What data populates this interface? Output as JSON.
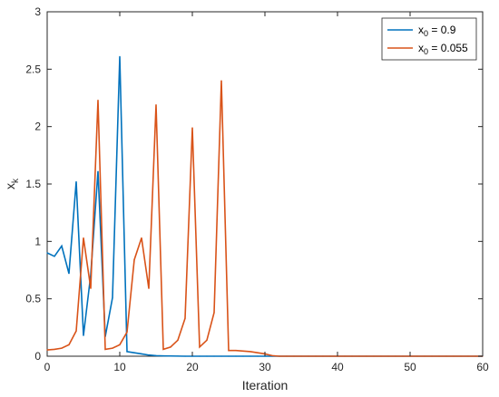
{
  "chart_data": {
    "type": "line",
    "xlabel": "Iteration",
    "ylabel": "x",
    "ylabel_sub": "k",
    "xlim": [
      0,
      60
    ],
    "ylim": [
      0,
      3
    ],
    "xticks": [
      0,
      10,
      20,
      30,
      40,
      50,
      60
    ],
    "yticks": [
      0,
      0.5,
      1,
      1.5,
      2,
      2.5,
      3
    ],
    "ytick_labels": [
      "0",
      "0.5",
      "1",
      "1.5",
      "2",
      "2.5",
      "3"
    ],
    "grid": false,
    "legend_position": "top-right",
    "series": [
      {
        "name": "x0 = 0.9",
        "legend_label": {
          "base": "x",
          "sub": "0",
          "rest": " = 0.9"
        },
        "color": "#0072BD",
        "x": [
          0,
          1,
          2,
          3,
          4,
          5,
          6,
          7,
          8,
          9,
          10,
          11,
          12,
          13,
          14,
          15,
          16,
          17,
          18,
          19,
          20,
          21,
          22,
          23,
          24,
          25,
          26,
          27,
          28,
          29,
          30,
          31,
          32,
          33,
          34,
          35,
          36,
          37,
          38,
          39,
          40,
          41,
          42,
          43,
          44,
          45,
          46,
          47,
          48,
          49,
          50,
          51,
          52,
          53,
          54,
          55,
          56,
          57,
          58,
          59,
          60
        ],
        "values": [
          0.9,
          0.87,
          0.96,
          0.72,
          1.52,
          0.18,
          0.71,
          1.61,
          0.17,
          0.51,
          2.61,
          0.04,
          0.03,
          0.02,
          0.01,
          0.005,
          0.003,
          0.002,
          0.001,
          0,
          0,
          0,
          0,
          0,
          0,
          0,
          0,
          0,
          0,
          0,
          0,
          0,
          0,
          0,
          0,
          0,
          0,
          0,
          0,
          0,
          0,
          0,
          0,
          0,
          0,
          0,
          0,
          0,
          0,
          0,
          0,
          0,
          0,
          0,
          0,
          0,
          0,
          0,
          0,
          0,
          0
        ]
      },
      {
        "name": "x0 = 0.055",
        "legend_label": {
          "base": "x",
          "sub": "0",
          "rest": " = 0.055"
        },
        "color": "#D95319",
        "x": [
          0,
          1,
          2,
          3,
          4,
          5,
          6,
          7,
          8,
          9,
          10,
          11,
          12,
          13,
          14,
          15,
          16,
          17,
          18,
          19,
          20,
          21,
          22,
          23,
          24,
          25,
          26,
          27,
          28,
          29,
          30,
          31,
          32,
          33,
          34,
          35,
          36,
          37,
          38,
          39,
          40,
          41,
          42,
          43,
          44,
          45,
          46,
          47,
          48,
          49,
          50,
          51,
          52,
          53,
          54,
          55,
          56,
          57,
          58,
          59,
          60
        ],
        "values": [
          0.055,
          0.06,
          0.07,
          0.1,
          0.22,
          1.03,
          0.59,
          2.23,
          0.06,
          0.07,
          0.1,
          0.21,
          0.84,
          1.03,
          0.59,
          2.19,
          0.06,
          0.08,
          0.14,
          0.33,
          1.99,
          0.08,
          0.14,
          0.38,
          2.4,
          0.05,
          0.05,
          0.045,
          0.04,
          0.03,
          0.02,
          0.005,
          0,
          0,
          0,
          0,
          0,
          0,
          0,
          0,
          0,
          0,
          0,
          0,
          0,
          0,
          0,
          0,
          0,
          0,
          0,
          0,
          0,
          0,
          0,
          0,
          0,
          0,
          0,
          0,
          0
        ]
      }
    ]
  }
}
